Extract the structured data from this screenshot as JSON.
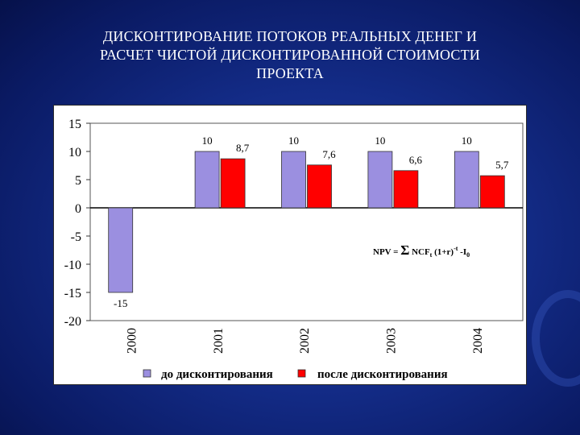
{
  "slide": {
    "title_lines": [
      "ДИСКОНТИРОВАНИЕ ПОТОКОВ РЕАЛЬНЫХ ДЕНЕГ И",
      "РАСЧЕТ ЧИСТОЙ ДИСКОНТИРОВАННОЙ СТОИМОСТИ",
      "ПРОЕКТА"
    ]
  },
  "chart_data": {
    "type": "bar",
    "categories": [
      "2000",
      "2001",
      "2002",
      "2003",
      "2004"
    ],
    "series": [
      {
        "name": "до дисконтирования",
        "values": [
          -15,
          10,
          10,
          10,
          10
        ],
        "labels": [
          "-15",
          "10",
          "10",
          "10",
          "10"
        ],
        "color": "#9b8fe0"
      },
      {
        "name": "после дисконтирования",
        "values": [
          null,
          8.7,
          7.6,
          6.6,
          5.7
        ],
        "labels": [
          "",
          "8,7",
          "7,6",
          "6,6",
          "5,7"
        ],
        "color": "#ff0000"
      }
    ],
    "ylim": [
      -20,
      15
    ],
    "yticks": [
      15,
      10,
      5,
      0,
      -5,
      -10,
      -15,
      -20
    ],
    "grid": false,
    "legend_position": "bottom",
    "annotation": {
      "prefix": "NPV = ",
      "sigma": "Σ",
      "body": " NCF",
      "sub_t": "t",
      "paren": " (1+r)",
      "sup": "-t",
      "minus": " -I",
      "sub_0": "0"
    }
  },
  "colors": {
    "background": "#132b86",
    "bar_before": "#9b8fe0",
    "bar_after": "#ff0000",
    "title_text": "#ffffff"
  }
}
